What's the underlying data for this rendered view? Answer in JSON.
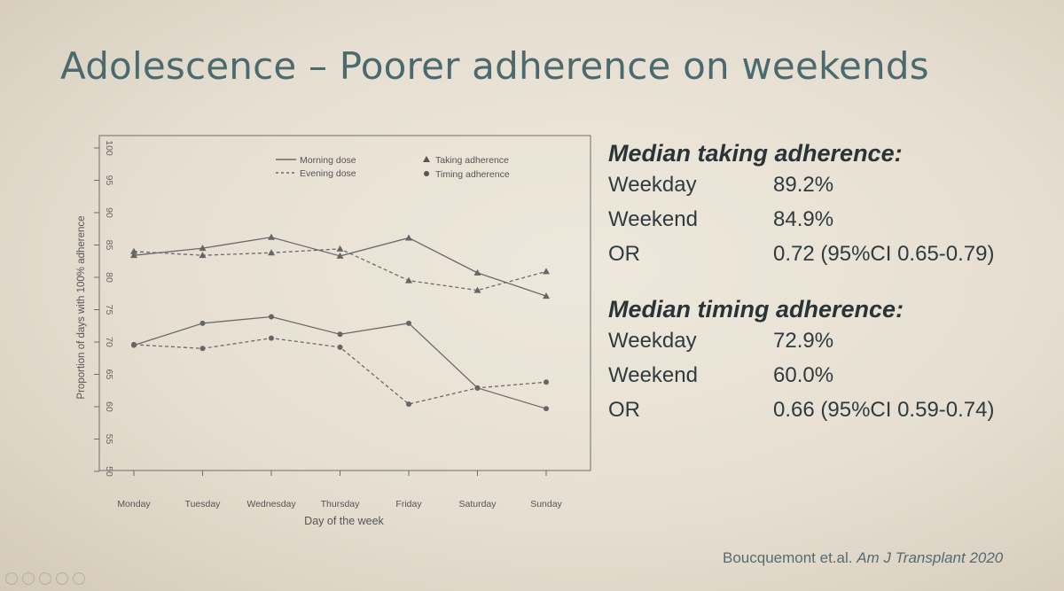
{
  "slide": {
    "title": "Adolescence – Poorer adherence on weekends",
    "citation_authors": "Boucquemont et.al.",
    "citation_journal": "Am J Transplant 2020"
  },
  "stats": {
    "taking": {
      "heading": "Median taking adherence:",
      "rows": [
        {
          "label": "Weekday",
          "value": "89.2%"
        },
        {
          "label": "Weekend",
          "value": "84.9%"
        },
        {
          "label": "OR",
          "value": "0.72 (95%CI 0.65-0.79)"
        }
      ]
    },
    "timing": {
      "heading": "Median timing adherence:",
      "rows": [
        {
          "label": "Weekday",
          "value": "72.9%"
        },
        {
          "label": "Weekend",
          "value": "60.0%"
        },
        {
          "label": "OR",
          "value": "0.66 (95%CI 0.59-0.74)"
        }
      ]
    }
  },
  "chart_data": {
    "type": "line",
    "xlabel": "Day of the week",
    "ylabel": "Proportion of days with 100% adherence",
    "categories": [
      "Monday",
      "Tuesday",
      "Wednesday",
      "Thursday",
      "Friday",
      "Saturday",
      "Sunday"
    ],
    "ylim": [
      50,
      100
    ],
    "yticks": [
      50,
      55,
      60,
      65,
      70,
      75,
      80,
      85,
      90,
      95,
      100
    ],
    "legend": {
      "position": "top",
      "morning_label": "Morning dose",
      "evening_label": "Evening dose",
      "taking_label": "Taking adherence",
      "timing_label": "Timing adherence"
    },
    "series": [
      {
        "name": "Taking adherence – Morning dose",
        "dose": "morning",
        "marker": "triangle",
        "style": "solid",
        "values": [
          83.4,
          84.5,
          86.2,
          83.3,
          86.1,
          80.7,
          77.1
        ]
      },
      {
        "name": "Taking adherence – Evening dose",
        "dose": "evening",
        "marker": "triangle",
        "style": "dashed",
        "values": [
          84.0,
          83.4,
          83.8,
          84.4,
          79.5,
          78.0,
          80.9
        ]
      },
      {
        "name": "Timing adherence – Morning dose",
        "dose": "morning",
        "marker": "circle",
        "style": "solid",
        "values": [
          69.5,
          72.9,
          73.9,
          71.2,
          72.9,
          62.9,
          59.7
        ]
      },
      {
        "name": "Timing adherence – Evening dose",
        "dose": "evening",
        "marker": "circle",
        "style": "dashed",
        "values": [
          69.6,
          69.0,
          70.6,
          69.2,
          60.4,
          62.9,
          63.8
        ]
      }
    ]
  }
}
